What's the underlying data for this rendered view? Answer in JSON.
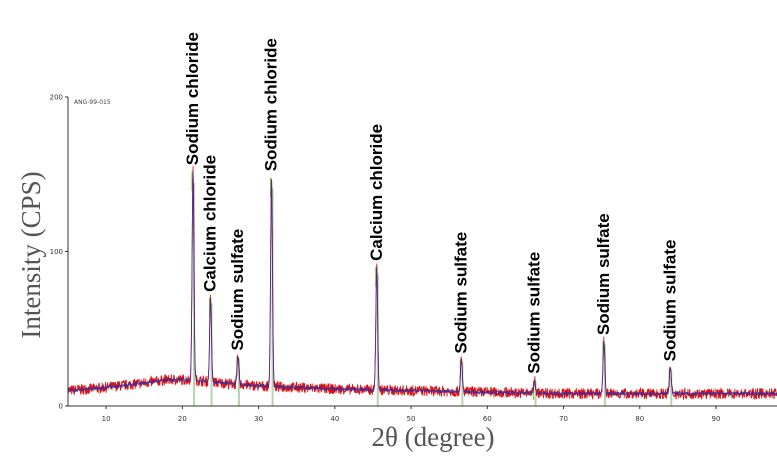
{
  "chart_data": {
    "type": "line",
    "ylabel": "Intensity (CPS)",
    "xlabel": "2θ (degree)",
    "pattern_code": "ANG-99-015",
    "xlim": [
      5,
      98
    ],
    "ylim": [
      0,
      200
    ],
    "x_ticks": [
      10,
      20,
      30,
      40,
      50,
      60,
      70,
      80,
      90
    ],
    "y_ticks": [
      0,
      100,
      200
    ],
    "colors": {
      "measured": "#e01010",
      "fit": "#3a2a9a",
      "reference_bars": "#a8c8a0",
      "peak_accent": "#8cc840"
    },
    "baseline": {
      "x": [
        5,
        10,
        15,
        18,
        21,
        25,
        30,
        40,
        50,
        60,
        70,
        80,
        90,
        98
      ],
      "y": [
        10,
        12,
        15,
        17,
        17,
        15,
        13,
        11,
        10,
        9,
        8,
        8,
        8,
        8
      ]
    },
    "peaks": [
      {
        "label": "Sodium chloride",
        "x": 21.4,
        "y": 152
      },
      {
        "label": "Calcium chloride",
        "x": 23.7,
        "y": 70
      },
      {
        "label": "Sodium sulfate",
        "x": 27.3,
        "y": 32
      },
      {
        "label": "Sodium chloride",
        "x": 31.7,
        "y": 148
      },
      {
        "label": "Calcium chloride",
        "x": 45.5,
        "y": 90
      },
      {
        "label": "Sodium sulfate",
        "x": 56.6,
        "y": 30
      },
      {
        "label": "Sodium sulfate",
        "x": 66.2,
        "y": 17
      },
      {
        "label": "Sodium sulfate",
        "x": 75.3,
        "y": 42
      },
      {
        "label": "Sodium sulfate",
        "x": 84.0,
        "y": 25
      }
    ]
  }
}
